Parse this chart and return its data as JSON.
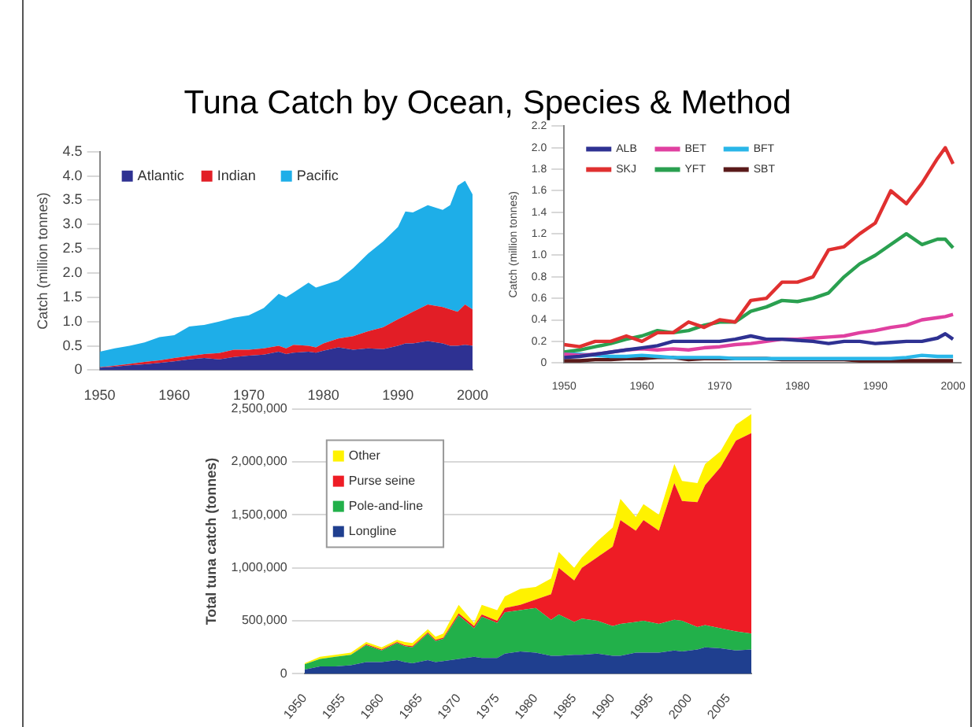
{
  "chart_data": [
    {
      "type": "area",
      "title": "Tuna Catch by Ocean, Species & Method",
      "ylabel": "Catch (million tonnes)",
      "stacked": true,
      "legend": "top left",
      "grid": false,
      "x": [
        1950,
        1952,
        1954,
        1956,
        1958,
        1960,
        1962,
        1964,
        1966,
        1968,
        1970,
        1972,
        1974,
        1975,
        1976,
        1978,
        1979,
        1980,
        1982,
        1984,
        1986,
        1988,
        1990,
        1991,
        1992,
        1994,
        1996,
        1997,
        1998,
        1999,
        2000
      ],
      "series": [
        {
          "name": "Atlantic",
          "color": "#2e3192",
          "values": [
            0.05,
            0.07,
            0.1,
            0.12,
            0.15,
            0.18,
            0.22,
            0.25,
            0.22,
            0.27,
            0.3,
            0.32,
            0.38,
            0.33,
            0.36,
            0.38,
            0.36,
            0.4,
            0.47,
            0.42,
            0.45,
            0.43,
            0.5,
            0.55,
            0.55,
            0.6,
            0.55,
            0.5,
            0.5,
            0.52,
            0.5
          ]
        },
        {
          "name": "Indian",
          "color": "#e21e26",
          "values": [
            0.01,
            0.02,
            0.03,
            0.05,
            0.05,
            0.07,
            0.07,
            0.08,
            0.13,
            0.15,
            0.12,
            0.13,
            0.12,
            0.12,
            0.16,
            0.12,
            0.11,
            0.15,
            0.18,
            0.28,
            0.35,
            0.45,
            0.55,
            0.57,
            0.65,
            0.75,
            0.75,
            0.75,
            0.7,
            0.83,
            0.75
          ]
        },
        {
          "name": "Pacific",
          "color": "#1eaee8",
          "values": [
            0.32,
            0.36,
            0.37,
            0.4,
            0.48,
            0.47,
            0.61,
            0.6,
            0.65,
            0.66,
            0.71,
            0.83,
            1.07,
            1.05,
            1.08,
            1.3,
            1.23,
            1.2,
            1.2,
            1.4,
            1.6,
            1.77,
            1.9,
            2.15,
            2.05,
            2.05,
            2,
            2.15,
            2.6,
            2.55,
            2.37
          ]
        }
      ],
      "xlim": [
        1950,
        2000
      ],
      "xticks": [
        1950,
        1960,
        1970,
        1980,
        1990,
        2000
      ],
      "ylim": [
        0,
        4.5
      ],
      "yticks": [
        0,
        0.5,
        {
          "value": 1,
          "label": "1.0"
        },
        1.5,
        {
          "value": 2,
          "label": "2.0"
        },
        2.5,
        {
          "value": 3,
          "label": "3.0"
        },
        3.5,
        {
          "value": 4,
          "label": "4.0"
        },
        4.5
      ]
    },
    {
      "type": "line",
      "ylabel": "Catch (million tonnes)",
      "legend": "top left",
      "grid": false,
      "x": [
        1950,
        1952,
        1954,
        1956,
        1958,
        1960,
        1962,
        1964,
        1966,
        1968,
        1970,
        1972,
        1974,
        1976,
        1978,
        1980,
        1982,
        1984,
        1986,
        1988,
        1990,
        1992,
        1994,
        1996,
        1998,
        1999,
        2000
      ],
      "series": [
        {
          "name": "ALB",
          "color": "#2e3192",
          "values": [
            0.05,
            0.06,
            0.08,
            0.1,
            0.12,
            0.14,
            0.16,
            0.2,
            0.2,
            0.2,
            0.2,
            0.22,
            0.25,
            0.22,
            0.22,
            0.21,
            0.2,
            0.18,
            0.2,
            0.2,
            0.18,
            0.19,
            0.2,
            0.2,
            0.23,
            0.27,
            0.22
          ]
        },
        {
          "name": "BET",
          "color": "#e040a0",
          "values": [
            0.08,
            0.07,
            0.08,
            0.1,
            0.12,
            0.13,
            0.12,
            0.13,
            0.12,
            0.14,
            0.15,
            0.17,
            0.18,
            0.2,
            0.22,
            0.22,
            0.23,
            0.24,
            0.25,
            0.28,
            0.3,
            0.33,
            0.35,
            0.4,
            0.42,
            0.43,
            0.45
          ]
        },
        {
          "name": "BFT",
          "color": "#29b6e8",
          "values": [
            0.08,
            0.08,
            0.07,
            0.06,
            0.06,
            0.07,
            0.06,
            0.05,
            0.05,
            0.05,
            0.05,
            0.04,
            0.04,
            0.04,
            0.04,
            0.04,
            0.04,
            0.04,
            0.04,
            0.04,
            0.04,
            0.04,
            0.05,
            0.07,
            0.06,
            0.06,
            0.06
          ]
        },
        {
          "name": "SKJ",
          "color": "#e03030",
          "values": [
            0.17,
            0.15,
            0.2,
            0.2,
            0.25,
            0.2,
            0.28,
            0.28,
            0.38,
            0.33,
            0.4,
            0.38,
            0.58,
            0.6,
            0.75,
            0.75,
            0.8,
            1.05,
            1.08,
            1.2,
            1.3,
            1.6,
            1.48,
            1.67,
            1.9,
            2,
            1.85
          ]
        },
        {
          "name": "YFT",
          "color": "#2aa050",
          "values": [
            0.1,
            0.12,
            0.15,
            0.18,
            0.22,
            0.25,
            0.3,
            0.28,
            0.3,
            0.35,
            0.38,
            0.38,
            0.48,
            0.52,
            0.58,
            0.57,
            0.6,
            0.65,
            0.8,
            0.92,
            1,
            1.1,
            1.2,
            1.1,
            1.15,
            1.15,
            1.07
          ]
        },
        {
          "name": "SBT",
          "color": "#5a1a1a",
          "values": [
            0.02,
            0.02,
            0.03,
            0.03,
            0.04,
            0.04,
            0.05,
            0.05,
            0.03,
            0.04,
            0.04,
            0.04,
            0.04,
            0.04,
            0.03,
            0.03,
            0.03,
            0.03,
            0.03,
            0.02,
            0.02,
            0.02,
            0.02,
            0.02,
            0.02,
            0.02,
            0.02
          ]
        }
      ],
      "xlim": [
        1950,
        2001
      ],
      "xticks": [
        1950,
        1960,
        1970,
        1980,
        1990,
        2000
      ],
      "ylim": [
        0,
        2.2
      ],
      "yticks": [
        0,
        0.2,
        0.4,
        0.6,
        0.8,
        {
          "value": 1,
          "label": "1.0"
        },
        1.2,
        1.4,
        1.6,
        1.8,
        {
          "value": 2,
          "label": "2.0"
        },
        2.2
      ]
    },
    {
      "type": "area",
      "ylabel": "Total tuna catch (tonnes)",
      "stacked": true,
      "legend": "top left",
      "grid": "y",
      "x": [
        1950,
        1952,
        1954,
        1956,
        1958,
        1960,
        1962,
        1963,
        1964,
        1966,
        1967,
        1968,
        1970,
        1972,
        1973,
        1975,
        1976,
        1978,
        1980,
        1982,
        1983,
        1985,
        1986,
        1988,
        1990,
        1991,
        1993,
        1994,
        1996,
        1998,
        1999,
        2001,
        2002,
        2004,
        2006,
        2008
      ],
      "series": [
        {
          "name": "Longline",
          "color": "#1f3f8f",
          "values": [
            40000,
            70000,
            70000,
            80000,
            110000,
            110000,
            130000,
            110000,
            100000,
            130000,
            110000,
            120000,
            140000,
            160000,
            150000,
            150000,
            190000,
            210000,
            200000,
            170000,
            170000,
            180000,
            180000,
            190000,
            170000,
            170000,
            200000,
            200000,
            200000,
            220000,
            210000,
            230000,
            250000,
            240000,
            220000,
            230000
          ]
        },
        {
          "name": "Pole-and-line",
          "color": "#22b04a",
          "values": [
            50000,
            70000,
            90000,
            100000,
            160000,
            110000,
            160000,
            150000,
            150000,
            250000,
            200000,
            210000,
            410000,
            270000,
            390000,
            330000,
            390000,
            390000,
            420000,
            340000,
            390000,
            310000,
            340000,
            310000,
            280000,
            300000,
            290000,
            300000,
            270000,
            290000,
            290000,
            210000,
            210000,
            190000,
            180000,
            150000
          ]
        },
        {
          "name": "Purse seine",
          "color": "#ee1c25",
          "values": [
            0,
            0,
            0,
            0,
            10000,
            10000,
            10000,
            10000,
            10000,
            10000,
            10000,
            10000,
            20000,
            20000,
            20000,
            20000,
            40000,
            50000,
            80000,
            240000,
            440000,
            390000,
            480000,
            600000,
            750000,
            980000,
            860000,
            950000,
            880000,
            1290000,
            1130000,
            1180000,
            1320000,
            1520000,
            1800000,
            1890000
          ]
        },
        {
          "name": "Other",
          "color": "#fff200",
          "values": [
            10000,
            20000,
            20000,
            20000,
            20000,
            20000,
            20000,
            30000,
            30000,
            30000,
            30000,
            40000,
            80000,
            30000,
            90000,
            100000,
            110000,
            150000,
            120000,
            150000,
            150000,
            120000,
            100000,
            150000,
            180000,
            200000,
            130000,
            150000,
            150000,
            180000,
            190000,
            180000,
            200000,
            150000,
            150000,
            180000
          ]
        }
      ],
      "xlim": [
        1950,
        2008
      ],
      "xticks": [
        1950,
        1955,
        1960,
        1965,
        1970,
        1975,
        1980,
        1985,
        1990,
        1995,
        2000,
        2005
      ],
      "ylim": [
        0,
        2500000
      ],
      "yticks": [
        0,
        {
          "value": 500000,
          "label": "500,000"
        },
        {
          "value": 1000000,
          "label": "1,000,000"
        },
        {
          "value": 1500000,
          "label": "1,500,000"
        },
        {
          "value": 2000000,
          "label": "2,000,000"
        },
        {
          "value": 2500000,
          "label": "2,500,000"
        }
      ]
    }
  ]
}
